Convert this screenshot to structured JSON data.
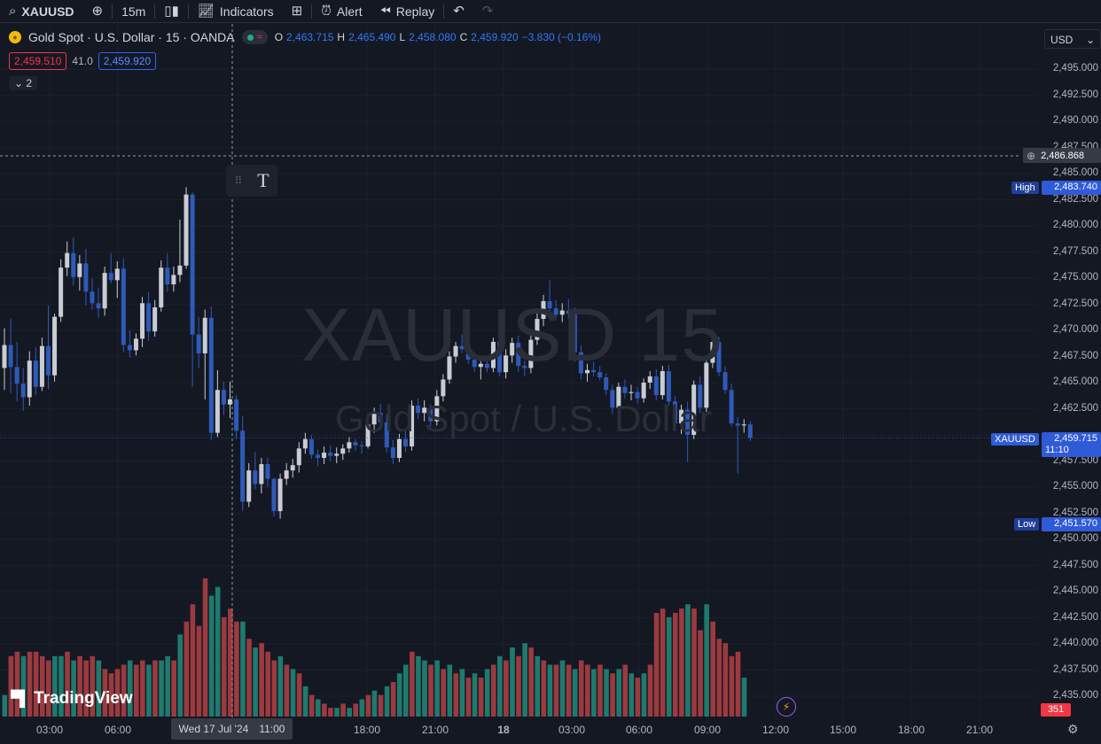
{
  "toolbar": {
    "symbol": "XAUUSD",
    "interval": "15m",
    "indicators_label": "Indicators",
    "alert_label": "Alert",
    "replay_label": "Replay"
  },
  "legend": {
    "title": "Gold Spot · U.S. Dollar · 15 · OANDA",
    "o_key": "O",
    "o_val": "2,463.715",
    "h_key": "H",
    "h_val": "2,465.490",
    "l_key": "L",
    "l_val": "2,458.080",
    "c_key": "C",
    "c_val": "2,459.920",
    "change": "−3.830 (−0.16%)",
    "bid": "2,459.510",
    "spread": "41.0",
    "ask": "2,459.920",
    "collapse_count": "2"
  },
  "currency": "USD",
  "watermark": {
    "title": "XAUUSD 15",
    "subtitle": "Gold Spot / U.S. Dollar"
  },
  "price_axis": {
    "labels": [
      "2,495.000",
      "2,492.500",
      "2,490.000",
      "2,487.500",
      "2,485.000",
      "2,482.500",
      "2,480.000",
      "2,477.500",
      "2,475.000",
      "2,472.500",
      "2,470.000",
      "2,467.500",
      "2,465.000",
      "2,462.500",
      "2,457.500",
      "2,455.000",
      "2,452.500",
      "2,450.000",
      "2,447.500",
      "2,445.000",
      "2,442.500",
      "2,440.000",
      "2,437.500",
      "2,435.000"
    ],
    "crosshair_price": "2,486.868",
    "high_label": "High",
    "high_price": "2,483.740",
    "symbol_tag": "XAUUSD",
    "last_price": "2,459.715",
    "countdown": "11:10",
    "low_label": "Low",
    "low_price": "2,451.570",
    "volume_tag": "351"
  },
  "time_axis": {
    "labels": [
      "03:00",
      "06:00",
      "18:00",
      "21:00",
      "18",
      "03:00",
      "06:00",
      "09:00",
      "12:00",
      "15:00",
      "18:00",
      "21:00"
    ],
    "crosshair_date": "Wed 17 Jul '24",
    "crosshair_time": "11:00"
  },
  "branding": "TradingView",
  "colors": {
    "up": "#c9ccd3",
    "down": "#2e5ab8",
    "vol_up": "#1f7a6e",
    "vol_down": "#9b3a3f",
    "bg": "#141823",
    "grid": "#1b1f2b"
  },
  "chart_data": {
    "type": "candlestick",
    "y_range": [
      2433,
      2497
    ],
    "candles": [
      {
        "o": 2466.4,
        "h": 2470.2,
        "l": 2464.3,
        "c": 2468.6
      },
      {
        "o": 2468.6,
        "h": 2471.1,
        "l": 2464.0,
        "c": 2466.5
      },
      {
        "o": 2466.5,
        "h": 2468.9,
        "l": 2463.2,
        "c": 2464.9
      },
      {
        "o": 2464.9,
        "h": 2466.4,
        "l": 2462.3,
        "c": 2463.6
      },
      {
        "o": 2463.6,
        "h": 2468.0,
        "l": 2462.8,
        "c": 2467.1
      },
      {
        "o": 2467.1,
        "h": 2468.4,
        "l": 2463.8,
        "c": 2464.6
      },
      {
        "o": 2464.6,
        "h": 2469.3,
        "l": 2464.2,
        "c": 2468.5
      },
      {
        "o": 2468.5,
        "h": 2472.4,
        "l": 2464.4,
        "c": 2465.7
      },
      {
        "o": 2465.7,
        "h": 2471.6,
        "l": 2465.1,
        "c": 2471.3
      },
      {
        "o": 2471.3,
        "h": 2476.8,
        "l": 2470.8,
        "c": 2476.0
      },
      {
        "o": 2476.0,
        "h": 2478.5,
        "l": 2475.2,
        "c": 2477.4
      },
      {
        "o": 2477.4,
        "h": 2478.9,
        "l": 2474.3,
        "c": 2475.1
      },
      {
        "o": 2475.1,
        "h": 2477.2,
        "l": 2473.8,
        "c": 2476.4
      },
      {
        "o": 2476.4,
        "h": 2477.8,
        "l": 2472.4,
        "c": 2473.7
      },
      {
        "o": 2473.7,
        "h": 2475.0,
        "l": 2472.0,
        "c": 2472.6
      },
      {
        "o": 2472.6,
        "h": 2474.1,
        "l": 2471.2,
        "c": 2472.1
      },
      {
        "o": 2472.1,
        "h": 2476.1,
        "l": 2471.4,
        "c": 2475.5
      },
      {
        "o": 2475.5,
        "h": 2477.4,
        "l": 2474.5,
        "c": 2474.8
      },
      {
        "o": 2474.8,
        "h": 2476.6,
        "l": 2473.1,
        "c": 2475.9
      },
      {
        "o": 2475.9,
        "h": 2476.9,
        "l": 2467.9,
        "c": 2468.6
      },
      {
        "o": 2468.6,
        "h": 2470.0,
        "l": 2467.4,
        "c": 2468.1
      },
      {
        "o": 2468.1,
        "h": 2469.7,
        "l": 2467.6,
        "c": 2469.2
      },
      {
        "o": 2469.2,
        "h": 2473.2,
        "l": 2468.4,
        "c": 2472.6
      },
      {
        "o": 2472.6,
        "h": 2473.7,
        "l": 2469.0,
        "c": 2469.9
      },
      {
        "o": 2469.9,
        "h": 2472.9,
        "l": 2469.4,
        "c": 2472.2
      },
      {
        "o": 2472.2,
        "h": 2476.7,
        "l": 2471.8,
        "c": 2476.0
      },
      {
        "o": 2476.0,
        "h": 2477.4,
        "l": 2473.7,
        "c": 2474.4
      },
      {
        "o": 2474.4,
        "h": 2476.1,
        "l": 2473.7,
        "c": 2475.3
      },
      {
        "o": 2475.3,
        "h": 2480.6,
        "l": 2474.6,
        "c": 2476.2
      },
      {
        "o": 2476.2,
        "h": 2483.7,
        "l": 2475.9,
        "c": 2483.0
      },
      {
        "o": 2483.0,
        "h": 2483.2,
        "l": 2464.6,
        "c": 2469.6
      },
      {
        "o": 2469.6,
        "h": 2471.3,
        "l": 2466.4,
        "c": 2467.8
      },
      {
        "o": 2467.8,
        "h": 2472.0,
        "l": 2463.4,
        "c": 2471.2
      },
      {
        "o": 2471.2,
        "h": 2472.3,
        "l": 2459.5,
        "c": 2460.2
      },
      {
        "o": 2460.2,
        "h": 2466.2,
        "l": 2459.8,
        "c": 2464.3
      },
      {
        "o": 2464.3,
        "h": 2465.1,
        "l": 2461.9,
        "c": 2462.9
      },
      {
        "o": 2462.9,
        "h": 2465.1,
        "l": 2461.6,
        "c": 2463.4
      },
      {
        "o": 2463.4,
        "h": 2463.8,
        "l": 2459.6,
        "c": 2460.4
      },
      {
        "o": 2460.4,
        "h": 2461.8,
        "l": 2452.7,
        "c": 2453.6
      },
      {
        "o": 2453.6,
        "h": 2457.3,
        "l": 2453.1,
        "c": 2456.6
      },
      {
        "o": 2456.6,
        "h": 2458.4,
        "l": 2454.8,
        "c": 2455.3
      },
      {
        "o": 2455.3,
        "h": 2457.8,
        "l": 2454.4,
        "c": 2457.2
      },
      {
        "o": 2457.2,
        "h": 2457.8,
        "l": 2455.0,
        "c": 2455.8
      },
      {
        "o": 2455.8,
        "h": 2455.9,
        "l": 2452.2,
        "c": 2452.7
      },
      {
        "o": 2452.7,
        "h": 2456.3,
        "l": 2452.0,
        "c": 2455.8
      },
      {
        "o": 2455.8,
        "h": 2457.3,
        "l": 2455.2,
        "c": 2456.6
      },
      {
        "o": 2456.6,
        "h": 2457.7,
        "l": 2455.9,
        "c": 2457.1
      },
      {
        "o": 2457.1,
        "h": 2459.3,
        "l": 2456.4,
        "c": 2458.7
      },
      {
        "o": 2458.7,
        "h": 2460.2,
        "l": 2458.2,
        "c": 2459.6
      },
      {
        "o": 2459.6,
        "h": 2460.0,
        "l": 2457.7,
        "c": 2458.1
      },
      {
        "o": 2458.1,
        "h": 2458.6,
        "l": 2457.0,
        "c": 2457.8
      },
      {
        "o": 2457.8,
        "h": 2458.9,
        "l": 2457.2,
        "c": 2458.3
      },
      {
        "o": 2458.3,
        "h": 2459.0,
        "l": 2457.5,
        "c": 2458.0
      },
      {
        "o": 2458.0,
        "h": 2458.8,
        "l": 2457.3,
        "c": 2458.2
      },
      {
        "o": 2458.2,
        "h": 2459.1,
        "l": 2457.6,
        "c": 2458.7
      },
      {
        "o": 2458.7,
        "h": 2459.8,
        "l": 2458.3,
        "c": 2459.3
      },
      {
        "o": 2459.3,
        "h": 2459.6,
        "l": 2458.5,
        "c": 2459.0
      },
      {
        "o": 2459.0,
        "h": 2459.4,
        "l": 2458.2,
        "c": 2458.9
      },
      {
        "o": 2458.9,
        "h": 2461.4,
        "l": 2458.7,
        "c": 2461.0
      },
      {
        "o": 2461.0,
        "h": 2462.6,
        "l": 2460.2,
        "c": 2462.1
      },
      {
        "o": 2462.1,
        "h": 2463.0,
        "l": 2460.5,
        "c": 2461.2
      },
      {
        "o": 2461.2,
        "h": 2462.0,
        "l": 2458.3,
        "c": 2458.8
      },
      {
        "o": 2458.8,
        "h": 2459.5,
        "l": 2457.2,
        "c": 2457.8
      },
      {
        "o": 2457.8,
        "h": 2460.1,
        "l": 2457.4,
        "c": 2459.6
      },
      {
        "o": 2459.6,
        "h": 2460.4,
        "l": 2458.4,
        "c": 2458.9
      },
      {
        "o": 2458.9,
        "h": 2463.3,
        "l": 2458.5,
        "c": 2462.8
      },
      {
        "o": 2462.8,
        "h": 2463.5,
        "l": 2461.5,
        "c": 2462.1
      },
      {
        "o": 2462.1,
        "h": 2463.3,
        "l": 2461.3,
        "c": 2462.6
      },
      {
        "o": 2462.6,
        "h": 2462.9,
        "l": 2460.8,
        "c": 2461.3
      },
      {
        "o": 2461.3,
        "h": 2464.3,
        "l": 2460.9,
        "c": 2463.7
      },
      {
        "o": 2463.7,
        "h": 2465.8,
        "l": 2463.2,
        "c": 2465.3
      },
      {
        "o": 2465.3,
        "h": 2468.0,
        "l": 2464.9,
        "c": 2467.5
      },
      {
        "o": 2467.5,
        "h": 2468.9,
        "l": 2466.9,
        "c": 2468.5
      },
      {
        "o": 2468.5,
        "h": 2469.6,
        "l": 2467.8,
        "c": 2468.2
      },
      {
        "o": 2468.2,
        "h": 2469.0,
        "l": 2466.8,
        "c": 2467.2
      },
      {
        "o": 2467.2,
        "h": 2467.9,
        "l": 2466.0,
        "c": 2466.5
      },
      {
        "o": 2466.5,
        "h": 2467.2,
        "l": 2465.3,
        "c": 2466.8
      },
      {
        "o": 2466.8,
        "h": 2467.3,
        "l": 2466.0,
        "c": 2466.4
      },
      {
        "o": 2466.4,
        "h": 2469.3,
        "l": 2466.0,
        "c": 2468.9
      },
      {
        "o": 2468.9,
        "h": 2470.4,
        "l": 2465.6,
        "c": 2466.0
      },
      {
        "o": 2466.0,
        "h": 2468.2,
        "l": 2465.4,
        "c": 2467.6
      },
      {
        "o": 2467.6,
        "h": 2469.3,
        "l": 2466.9,
        "c": 2468.8
      },
      {
        "o": 2468.8,
        "h": 2469.5,
        "l": 2466.0,
        "c": 2466.6
      },
      {
        "o": 2466.6,
        "h": 2467.1,
        "l": 2465.6,
        "c": 2466.4
      },
      {
        "o": 2466.4,
        "h": 2469.5,
        "l": 2465.9,
        "c": 2469.1
      },
      {
        "o": 2469.1,
        "h": 2471.7,
        "l": 2468.6,
        "c": 2471.1
      },
      {
        "o": 2471.1,
        "h": 2473.4,
        "l": 2470.4,
        "c": 2472.8
      },
      {
        "o": 2472.8,
        "h": 2474.8,
        "l": 2471.6,
        "c": 2472.1
      },
      {
        "o": 2472.1,
        "h": 2472.9,
        "l": 2471.2,
        "c": 2471.5
      },
      {
        "o": 2471.5,
        "h": 2472.6,
        "l": 2470.8,
        "c": 2471.9
      },
      {
        "o": 2471.9,
        "h": 2473.0,
        "l": 2471.1,
        "c": 2471.6
      },
      {
        "o": 2471.6,
        "h": 2472.2,
        "l": 2467.0,
        "c": 2467.9
      },
      {
        "o": 2467.9,
        "h": 2468.6,
        "l": 2465.3,
        "c": 2465.9
      },
      {
        "o": 2465.9,
        "h": 2466.8,
        "l": 2465.1,
        "c": 2466.2
      },
      {
        "o": 2466.2,
        "h": 2467.0,
        "l": 2465.6,
        "c": 2466.0
      },
      {
        "o": 2466.0,
        "h": 2466.6,
        "l": 2465.2,
        "c": 2465.5
      },
      {
        "o": 2465.5,
        "h": 2465.9,
        "l": 2463.8,
        "c": 2464.3
      },
      {
        "o": 2464.3,
        "h": 2464.8,
        "l": 2462.0,
        "c": 2462.6
      },
      {
        "o": 2462.6,
        "h": 2465.0,
        "l": 2462.1,
        "c": 2464.6
      },
      {
        "o": 2464.6,
        "h": 2465.3,
        "l": 2463.5,
        "c": 2464.0
      },
      {
        "o": 2464.0,
        "h": 2464.8,
        "l": 2463.3,
        "c": 2464.1
      },
      {
        "o": 2464.1,
        "h": 2464.6,
        "l": 2463.0,
        "c": 2463.5
      },
      {
        "o": 2463.5,
        "h": 2465.4,
        "l": 2463.1,
        "c": 2465.0
      },
      {
        "o": 2465.0,
        "h": 2466.1,
        "l": 2464.4,
        "c": 2465.6
      },
      {
        "o": 2465.6,
        "h": 2466.3,
        "l": 2463.3,
        "c": 2463.8
      },
      {
        "o": 2463.8,
        "h": 2466.6,
        "l": 2463.4,
        "c": 2466.1
      },
      {
        "o": 2466.1,
        "h": 2466.7,
        "l": 2462.8,
        "c": 2463.2
      },
      {
        "o": 2463.2,
        "h": 2463.7,
        "l": 2460.7,
        "c": 2461.1
      },
      {
        "o": 2461.1,
        "h": 2462.9,
        "l": 2460.1,
        "c": 2462.4
      },
      {
        "o": 2462.4,
        "h": 2463.2,
        "l": 2457.4,
        "c": 2460.0
      },
      {
        "o": 2460.0,
        "h": 2465.2,
        "l": 2459.6,
        "c": 2464.8
      },
      {
        "o": 2464.8,
        "h": 2465.6,
        "l": 2462.1,
        "c": 2462.6
      },
      {
        "o": 2462.6,
        "h": 2467.3,
        "l": 2462.2,
        "c": 2466.9
      },
      {
        "o": 2466.9,
        "h": 2469.6,
        "l": 2466.4,
        "c": 2468.9
      },
      {
        "o": 2468.9,
        "h": 2469.4,
        "l": 2465.6,
        "c": 2466.0
      },
      {
        "o": 2466.0,
        "h": 2466.6,
        "l": 2463.9,
        "c": 2464.3
      },
      {
        "o": 2464.3,
        "h": 2464.9,
        "l": 2460.8,
        "c": 2461.1
      },
      {
        "o": 2461.1,
        "h": 2461.7,
        "l": 2456.3,
        "c": 2460.9
      },
      {
        "o": 2460.9,
        "h": 2461.5,
        "l": 2460.2,
        "c": 2461.0
      },
      {
        "o": 2461.0,
        "h": 2461.3,
        "l": 2459.4,
        "c": 2459.7
      }
    ],
    "volumes": [
      {
        "v": 5,
        "d": 0
      },
      {
        "v": 14,
        "d": 1
      },
      {
        "v": 15,
        "d": 1
      },
      {
        "v": 14,
        "d": 0
      },
      {
        "v": 15,
        "d": 1
      },
      {
        "v": 15,
        "d": 1
      },
      {
        "v": 14,
        "d": 1
      },
      {
        "v": 13,
        "d": 1
      },
      {
        "v": 14,
        "d": 0
      },
      {
        "v": 14,
        "d": 0
      },
      {
        "v": 15,
        "d": 1
      },
      {
        "v": 13,
        "d": 0
      },
      {
        "v": 14,
        "d": 1
      },
      {
        "v": 13,
        "d": 1
      },
      {
        "v": 14,
        "d": 1
      },
      {
        "v": 13,
        "d": 0
      },
      {
        "v": 11,
        "d": 1
      },
      {
        "v": 10,
        "d": 1
      },
      {
        "v": 11,
        "d": 1
      },
      {
        "v": 12,
        "d": 1
      },
      {
        "v": 13,
        "d": 0
      },
      {
        "v": 12,
        "d": 1
      },
      {
        "v": 13,
        "d": 1
      },
      {
        "v": 12,
        "d": 0
      },
      {
        "v": 13,
        "d": 1
      },
      {
        "v": 13,
        "d": 0
      },
      {
        "v": 14,
        "d": 0
      },
      {
        "v": 13,
        "d": 1
      },
      {
        "v": 19,
        "d": 0
      },
      {
        "v": 22,
        "d": 1
      },
      {
        "v": 26,
        "d": 1
      },
      {
        "v": 21,
        "d": 1
      },
      {
        "v": 32,
        "d": 1
      },
      {
        "v": 28,
        "d": 0
      },
      {
        "v": 30,
        "d": 0
      },
      {
        "v": 23,
        "d": 1
      },
      {
        "v": 25,
        "d": 1
      },
      {
        "v": 22,
        "d": 1
      },
      {
        "v": 22,
        "d": 0
      },
      {
        "v": 18,
        "d": 1
      },
      {
        "v": 16,
        "d": 0
      },
      {
        "v": 17,
        "d": 1
      },
      {
        "v": 15,
        "d": 1
      },
      {
        "v": 13,
        "d": 1
      },
      {
        "v": 14,
        "d": 0
      },
      {
        "v": 12,
        "d": 1
      },
      {
        "v": 11,
        "d": 0
      },
      {
        "v": 10,
        "d": 1
      },
      {
        "v": 7,
        "d": 0
      },
      {
        "v": 5,
        "d": 1
      },
      {
        "v": 4,
        "d": 0
      },
      {
        "v": 3,
        "d": 1
      },
      {
        "v": 2,
        "d": 1
      },
      {
        "v": 2,
        "d": 0
      },
      {
        "v": 3,
        "d": 1
      },
      {
        "v": 2,
        "d": 0
      },
      {
        "v": 3,
        "d": 1
      },
      {
        "v": 4,
        "d": 0
      },
      {
        "v": 5,
        "d": 1
      },
      {
        "v": 6,
        "d": 0
      },
      {
        "v": 5,
        "d": 1
      },
      {
        "v": 7,
        "d": 0
      },
      {
        "v": 8,
        "d": 1
      },
      {
        "v": 10,
        "d": 0
      },
      {
        "v": 12,
        "d": 0
      },
      {
        "v": 15,
        "d": 1
      },
      {
        "v": 14,
        "d": 0
      },
      {
        "v": 13,
        "d": 0
      },
      {
        "v": 12,
        "d": 1
      },
      {
        "v": 13,
        "d": 0
      },
      {
        "v": 11,
        "d": 1
      },
      {
        "v": 12,
        "d": 0
      },
      {
        "v": 10,
        "d": 1
      },
      {
        "v": 11,
        "d": 0
      },
      {
        "v": 9,
        "d": 1
      },
      {
        "v": 10,
        "d": 0
      },
      {
        "v": 9,
        "d": 1
      },
      {
        "v": 11,
        "d": 0
      },
      {
        "v": 12,
        "d": 1
      },
      {
        "v": 14,
        "d": 0
      },
      {
        "v": 13,
        "d": 1
      },
      {
        "v": 16,
        "d": 0
      },
      {
        "v": 14,
        "d": 1
      },
      {
        "v": 17,
        "d": 0
      },
      {
        "v": 16,
        "d": 1
      },
      {
        "v": 14,
        "d": 0
      },
      {
        "v": 13,
        "d": 1
      },
      {
        "v": 12,
        "d": 0
      },
      {
        "v": 12,
        "d": 1
      },
      {
        "v": 13,
        "d": 0
      },
      {
        "v": 12,
        "d": 1
      },
      {
        "v": 11,
        "d": 0
      },
      {
        "v": 13,
        "d": 1
      },
      {
        "v": 12,
        "d": 1
      },
      {
        "v": 11,
        "d": 0
      },
      {
        "v": 12,
        "d": 1
      },
      {
        "v": 11,
        "d": 0
      },
      {
        "v": 10,
        "d": 1
      },
      {
        "v": 11,
        "d": 0
      },
      {
        "v": 12,
        "d": 1
      },
      {
        "v": 10,
        "d": 0
      },
      {
        "v": 9,
        "d": 1
      },
      {
        "v": 10,
        "d": 0
      },
      {
        "v": 12,
        "d": 1
      },
      {
        "v": 24,
        "d": 1
      },
      {
        "v": 25,
        "d": 1
      },
      {
        "v": 23,
        "d": 0
      },
      {
        "v": 24,
        "d": 1
      },
      {
        "v": 25,
        "d": 1
      },
      {
        "v": 26,
        "d": 0
      },
      {
        "v": 25,
        "d": 1
      },
      {
        "v": 20,
        "d": 1
      },
      {
        "v": 26,
        "d": 0
      },
      {
        "v": 22,
        "d": 1
      },
      {
        "v": 18,
        "d": 1
      },
      {
        "v": 17,
        "d": 1
      },
      {
        "v": 14,
        "d": 1
      },
      {
        "v": 15,
        "d": 1
      },
      {
        "v": 9,
        "d": 0
      }
    ],
    "volume_range": [
      0,
      40
    ]
  }
}
